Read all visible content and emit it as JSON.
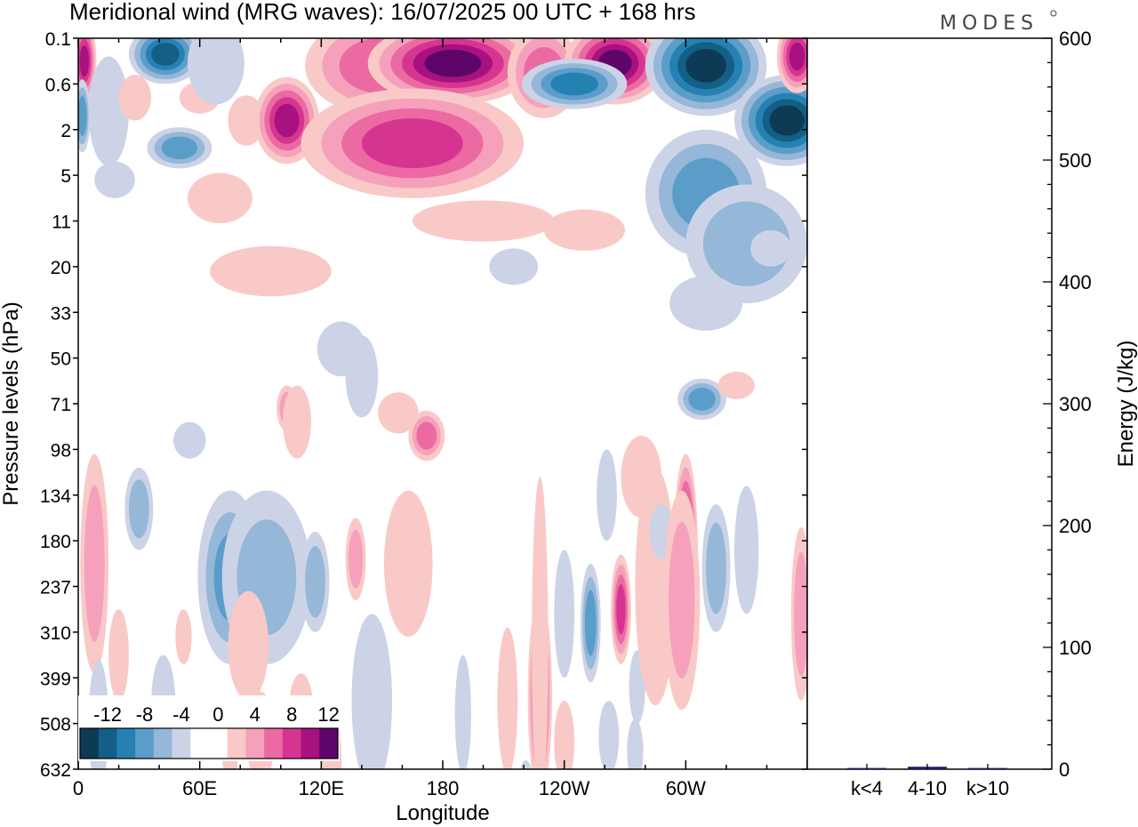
{
  "header": {
    "title": "Meridional wind (MRG waves):  16/07/2025  00 UTC  + 168 hrs",
    "logo": "MODES"
  },
  "chart_data": [
    {
      "type": "heatmap",
      "title": "Meridional wind (MRG waves):  16/07/2025  00 UTC  + 168 hrs",
      "xlabel": "Longitude",
      "ylabel": "Pressure levels (hPa)",
      "x_ticks": [
        "0",
        "60E",
        "120E",
        "180",
        "120W",
        "60W"
      ],
      "x_tick_degrees": [
        0,
        60,
        120,
        180,
        240,
        300
      ],
      "x_range_degrees": [
        0,
        360
      ],
      "y_ticks": [
        "0.1",
        "0.6",
        "2",
        "5",
        "11",
        "20",
        "33",
        "50",
        "71",
        "98",
        "134",
        "180",
        "237",
        "310",
        "399",
        "508",
        "632"
      ],
      "y_axis": "top-to-bottom, evenly spaced model levels",
      "colorbar": {
        "placement": "bottom-left",
        "labels": [
          "-12",
          "-8",
          "-4",
          "0",
          "4",
          "8",
          "12"
        ],
        "levels": [
          -14,
          -12,
          -10,
          -8,
          -6,
          -4,
          -2,
          0,
          2,
          4,
          6,
          8,
          10,
          12,
          14
        ],
        "colors": [
          "#0d3a55",
          "#135f85",
          "#2681b3",
          "#5b9dc9",
          "#95b7d8",
          "#cdd3e6",
          "#ffffff",
          "#ffffff",
          "#f9c9c7",
          "#f5a1bb",
          "#ec6aa2",
          "#d53591",
          "#a8117f",
          "#5f0569"
        ]
      },
      "contour_blobs": [
        {
          "lon": 3,
          "level": 0.5,
          "wlon": 6,
          "wlev": 0.9,
          "v": 12
        },
        {
          "lon": 15,
          "level": 1.6,
          "wlon": 10,
          "wlev": 1.2,
          "v": -4
        },
        {
          "lon": 2,
          "level": 1.7,
          "wlon": 4,
          "wlev": 0.8,
          "v": -8
        },
        {
          "lon": 28,
          "level": 1.3,
          "wlon": 8,
          "wlev": 0.5,
          "v": 4
        },
        {
          "lon": 43,
          "level": 0.35,
          "wlon": 18,
          "wlev": 0.65,
          "v": -12
        },
        {
          "lon": 50,
          "level": 2.4,
          "wlon": 16,
          "wlev": 0.45,
          "v": -8
        },
        {
          "lon": 18,
          "level": 3.1,
          "wlon": 10,
          "wlev": 0.4,
          "v": -4
        },
        {
          "lon": 60,
          "level": 1.3,
          "wlon": 10,
          "wlev": 0.35,
          "v": 4
        },
        {
          "lon": 68,
          "level": 0.55,
          "wlon": 14,
          "wlev": 0.9,
          "v": -4
        },
        {
          "lon": 83,
          "level": 1.8,
          "wlon": 9,
          "wlev": 0.55,
          "v": 4
        },
        {
          "lon": 103,
          "level": 1.8,
          "wlon": 16,
          "wlev": 0.95,
          "v": 12
        },
        {
          "lon": 70,
          "level": 3.5,
          "wlon": 16,
          "wlev": 0.55,
          "v": 4
        },
        {
          "lon": 82,
          "level": 5.1,
          "wlon": 16,
          "wlev": 0.45,
          "v": -4
        },
        {
          "lon": 95,
          "level": 5.1,
          "wlon": 30,
          "wlev": 0.55,
          "v": 4
        },
        {
          "lon": 150,
          "level": 0.6,
          "wlon": 38,
          "wlev": 1.1,
          "v": 8
        },
        {
          "lon": 185,
          "level": 0.55,
          "wlon": 42,
          "wlev": 0.9,
          "v": 14
        },
        {
          "lon": 165,
          "level": 2.3,
          "wlon": 55,
          "wlev": 1.2,
          "v": 10
        },
        {
          "lon": 230,
          "level": 0.75,
          "wlon": 18,
          "wlev": 1.0,
          "v": 8
        },
        {
          "lon": 265,
          "level": 0.55,
          "wlon": 25,
          "wlev": 0.9,
          "v": 14
        },
        {
          "lon": 245,
          "level": 1.0,
          "wlon": 26,
          "wlev": 0.55,
          "v": -10
        },
        {
          "lon": 310,
          "level": 0.6,
          "wlon": 30,
          "wlev": 1.1,
          "v": -14
        },
        {
          "lon": 350,
          "level": 1.8,
          "wlon": 26,
          "wlev": 1.0,
          "v": -14
        },
        {
          "lon": 355,
          "level": 0.4,
          "wlon": 10,
          "wlev": 0.8,
          "v": 12
        },
        {
          "lon": 310,
          "level": 3.4,
          "wlon": 30,
          "wlev": 1.4,
          "v": -8
        },
        {
          "lon": 330,
          "level": 4.5,
          "wlon": 30,
          "wlev": 1.3,
          "v": -6
        },
        {
          "lon": 200,
          "level": 4.0,
          "wlon": 35,
          "wlev": 0.45,
          "v": 4
        },
        {
          "lon": 250,
          "level": 4.2,
          "wlon": 20,
          "wlev": 0.45,
          "v": 4
        },
        {
          "lon": 215,
          "level": 5.0,
          "wlon": 12,
          "wlev": 0.4,
          "v": -4
        },
        {
          "lon": 310,
          "level": 5.8,
          "wlon": 18,
          "wlev": 0.6,
          "v": -4
        },
        {
          "lon": 342,
          "level": 4.6,
          "wlon": 10,
          "wlev": 0.4,
          "v": -4
        },
        {
          "lon": 130,
          "level": 6.8,
          "wlon": 12,
          "wlev": 0.6,
          "v": -4
        },
        {
          "lon": 140,
          "level": 7.4,
          "wlon": 8,
          "wlev": 0.9,
          "v": -4
        },
        {
          "lon": 103,
          "level": 8.1,
          "wlon": 5,
          "wlev": 0.5,
          "v": 6
        },
        {
          "lon": 108,
          "level": 8.4,
          "wlon": 7,
          "wlev": 0.8,
          "v": 4
        },
        {
          "lon": 55,
          "level": 8.8,
          "wlon": 8,
          "wlev": 0.4,
          "v": -4
        },
        {
          "lon": 158,
          "level": 8.2,
          "wlon": 10,
          "wlev": 0.45,
          "v": 4
        },
        {
          "lon": 172,
          "level": 8.7,
          "wlon": 9,
          "wlev": 0.55,
          "v": 8
        },
        {
          "lon": 308,
          "level": 7.9,
          "wlon": 12,
          "wlev": 0.45,
          "v": -8
        },
        {
          "lon": 325,
          "level": 7.6,
          "wlon": 9,
          "wlev": 0.3,
          "v": 4
        },
        {
          "lon": 8,
          "level": 11.5,
          "wlon": 7,
          "wlev": 2.4,
          "v": 6
        },
        {
          "lon": 30,
          "level": 10.3,
          "wlon": 7,
          "wlev": 0.9,
          "v": -6
        },
        {
          "lon": 75,
          "level": 11.8,
          "wlon": 16,
          "wlev": 1.9,
          "v": -7
        },
        {
          "lon": 93,
          "level": 11.8,
          "wlon": 22,
          "wlev": 1.9,
          "v": -5
        },
        {
          "lon": 117,
          "level": 11.9,
          "wlon": 7,
          "wlev": 1.1,
          "v": -6
        },
        {
          "lon": 84,
          "level": 13.3,
          "wlon": 10,
          "wlev": 1.2,
          "v": 4
        },
        {
          "lon": 163,
          "level": 11.5,
          "wlon": 12,
          "wlev": 1.6,
          "v": 4
        },
        {
          "lon": 137,
          "level": 11.4,
          "wlon": 5,
          "wlev": 0.9,
          "v": 6
        },
        {
          "lon": 145,
          "level": 14.5,
          "wlon": 10,
          "wlev": 1.9,
          "v": -4
        },
        {
          "lon": 125,
          "level": 15.8,
          "wlon": 5,
          "wlev": 1.1,
          "v": 4
        },
        {
          "lon": 42,
          "level": 14.6,
          "wlon": 6,
          "wlev": 1.1,
          "v": -4
        },
        {
          "lon": 75,
          "level": 15.6,
          "wlon": 4,
          "wlev": 0.7,
          "v": 4
        },
        {
          "lon": 228,
          "level": 14.4,
          "wlon": 6,
          "wlev": 2.2,
          "v": 10
        },
        {
          "lon": 228,
          "level": 13.2,
          "wlon": 4,
          "wlev": 3.6,
          "v": 4
        },
        {
          "lon": 212,
          "level": 14.5,
          "wlon": 5,
          "wlev": 1.6,
          "v": 4
        },
        {
          "lon": 221,
          "level": 16.5,
          "wlon": 4,
          "wlev": 0.7,
          "v": -4
        },
        {
          "lon": 240,
          "level": 12.6,
          "wlon": 5,
          "wlev": 1.4,
          "v": -4
        },
        {
          "lon": 253,
          "level": 12.8,
          "wlon": 5,
          "wlev": 1.3,
          "v": -8
        },
        {
          "lon": 268,
          "level": 12.5,
          "wlon": 5,
          "wlev": 1.2,
          "v": 10
        },
        {
          "lon": 276,
          "level": 14.2,
          "wlon": 4,
          "wlev": 0.8,
          "v": -4
        },
        {
          "lon": 261,
          "level": 10.0,
          "wlon": 5,
          "wlev": 1.0,
          "v": -4
        },
        {
          "lon": 285,
          "level": 12.5,
          "wlon": 8,
          "wlev": 1.5,
          "v": -8
        },
        {
          "lon": 278,
          "level": 9.6,
          "wlon": 10,
          "wlev": 0.9,
          "v": 4
        },
        {
          "lon": 285,
          "level": 12.0,
          "wlon": 10,
          "wlev": 2.6,
          "v": 4
        },
        {
          "lon": 288,
          "level": 10.8,
          "wlon": 6,
          "wlev": 0.6,
          "v": -4
        },
        {
          "lon": 300,
          "level": 11.3,
          "wlon": 6,
          "wlev": 2.2,
          "v": 14
        },
        {
          "lon": 298,
          "level": 12.3,
          "wlon": 9,
          "wlev": 2.4,
          "v": 6
        },
        {
          "lon": 315,
          "level": 11.6,
          "wlon": 7,
          "wlev": 1.4,
          "v": -6
        },
        {
          "lon": 330,
          "level": 11.2,
          "wlon": 6,
          "wlev": 1.4,
          "v": -4
        },
        {
          "lon": 357,
          "level": 12.6,
          "wlon": 5,
          "wlev": 1.9,
          "v": 6
        },
        {
          "lon": 20,
          "level": 13.5,
          "wlon": 5,
          "wlev": 1.0,
          "v": 4
        },
        {
          "lon": 52,
          "level": 13.1,
          "wlon": 4,
          "wlev": 0.6,
          "v": 4
        },
        {
          "lon": 90,
          "level": 15.3,
          "wlon": 7,
          "wlev": 1.0,
          "v": 4
        },
        {
          "lon": 190,
          "level": 14.8,
          "wlon": 4,
          "wlev": 1.3,
          "v": -4
        },
        {
          "lon": 240,
          "level": 15.4,
          "wlon": 5,
          "wlev": 0.9,
          "v": 4
        },
        {
          "lon": 262,
          "level": 15.3,
          "wlon": 5,
          "wlev": 0.8,
          "v": -4
        },
        {
          "lon": 275,
          "level": 15.6,
          "wlon": 4,
          "wlev": 0.7,
          "v": -4
        },
        {
          "lon": 10,
          "level": 15.0,
          "wlon": 5,
          "wlev": 1.4,
          "v": -4
        },
        {
          "lon": 110,
          "level": 14.7,
          "wlon": 6,
          "wlev": 0.8,
          "v": 4
        }
      ]
    },
    {
      "type": "bar",
      "ylabel": "Energy (J/kg)",
      "categories": [
        "k<4",
        "4-10",
        "k>10"
      ],
      "values": [
        1,
        2,
        1
      ],
      "ylim": [
        0,
        600
      ],
      "y_ticks": [
        "0",
        "100",
        "200",
        "300",
        "400",
        "500",
        "600"
      ],
      "bar_color": "#1c1c6b"
    }
  ]
}
